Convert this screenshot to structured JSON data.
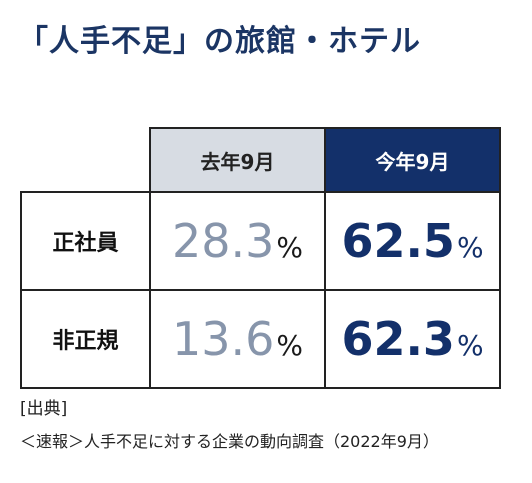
{
  "title": "「人手不足」の旅館・ホテル",
  "chart_data": {
    "type": "table",
    "columns": [
      "去年9月",
      "今年9月"
    ],
    "rows": [
      {
        "label": "正社員",
        "values": [
          28.3,
          62.5
        ]
      },
      {
        "label": "非正規",
        "values": [
          13.6,
          62.3
        ]
      }
    ],
    "unit": "%"
  },
  "cells": {
    "r0c0": "28.3",
    "r0c1": "62.5",
    "r1c0": "13.6",
    "r1c1": "62.3"
  },
  "source": {
    "label": "[出典]",
    "text": "＜速報＞人手不足に対する企業の動向調査（2022年9月）"
  },
  "colors": {
    "title": "#1b3564",
    "this_year_header_bg": "#13306a",
    "last_year_header_bg": "#d7dce3",
    "last_year_value": "#8795ab",
    "this_year_value": "#13306a"
  }
}
